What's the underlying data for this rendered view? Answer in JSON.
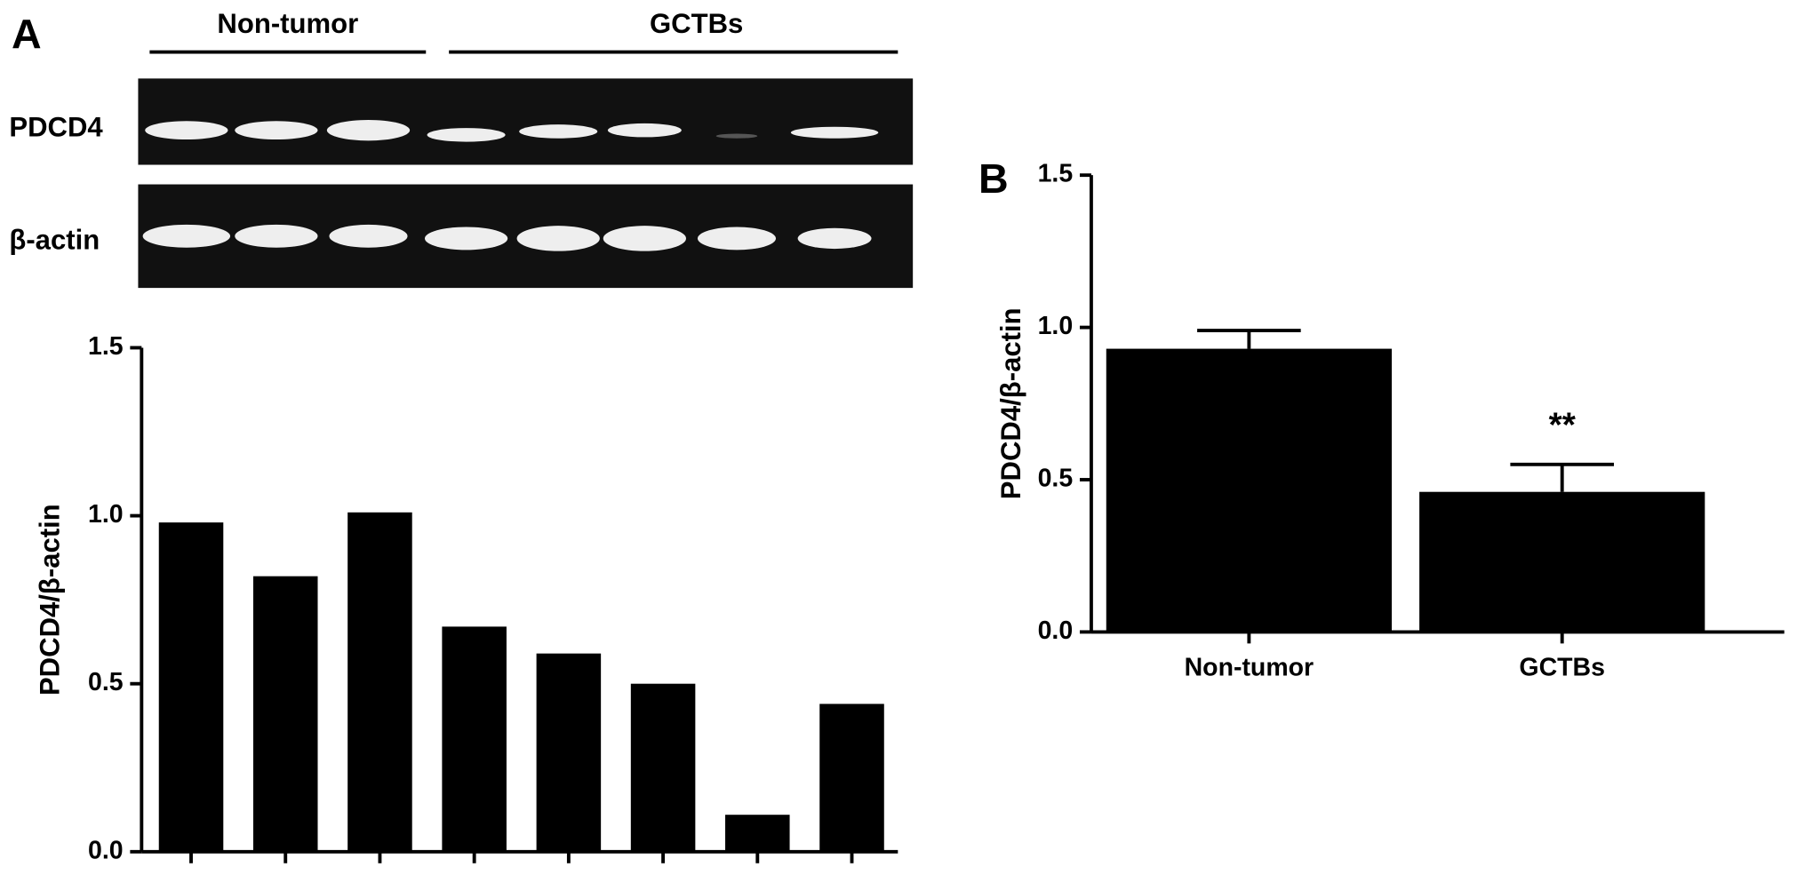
{
  "blot": {
    "groups": [
      "Non-tumor",
      "GCTBs"
    ],
    "rows": [
      "PDCD4",
      "β-actin"
    ]
  },
  "chart_data": [
    {
      "type": "bar",
      "panel": "A",
      "ylabel": "PDCD4/β-actin",
      "categories": [
        null,
        null,
        null,
        null,
        null,
        null,
        null,
        null
      ],
      "values": [
        0.98,
        0.82,
        1.01,
        0.67,
        0.59,
        0.5,
        0.11,
        0.44
      ],
      "color": "#000000",
      "ylim": [
        0,
        1.5
      ],
      "yticks": [
        {
          "value": 0,
          "label": "0.0"
        },
        0.5,
        {
          "value": 1,
          "label": "1.0"
        },
        1.5
      ]
    },
    {
      "type": "bar",
      "panel": "B",
      "ylabel": "PDCD4/β-actin",
      "categories": [
        "Non-tumor",
        "GCTBs"
      ],
      "values": [
        0.93,
        0.46
      ],
      "errors": [
        0.06,
        0.09
      ],
      "annotations": [
        null,
        "**"
      ],
      "color": "#000000",
      "ylim": [
        0,
        1.5
      ],
      "yticks": [
        {
          "value": 0,
          "label": "0.0"
        },
        0.5,
        {
          "value": 1,
          "label": "1.0"
        },
        1.5
      ]
    }
  ]
}
